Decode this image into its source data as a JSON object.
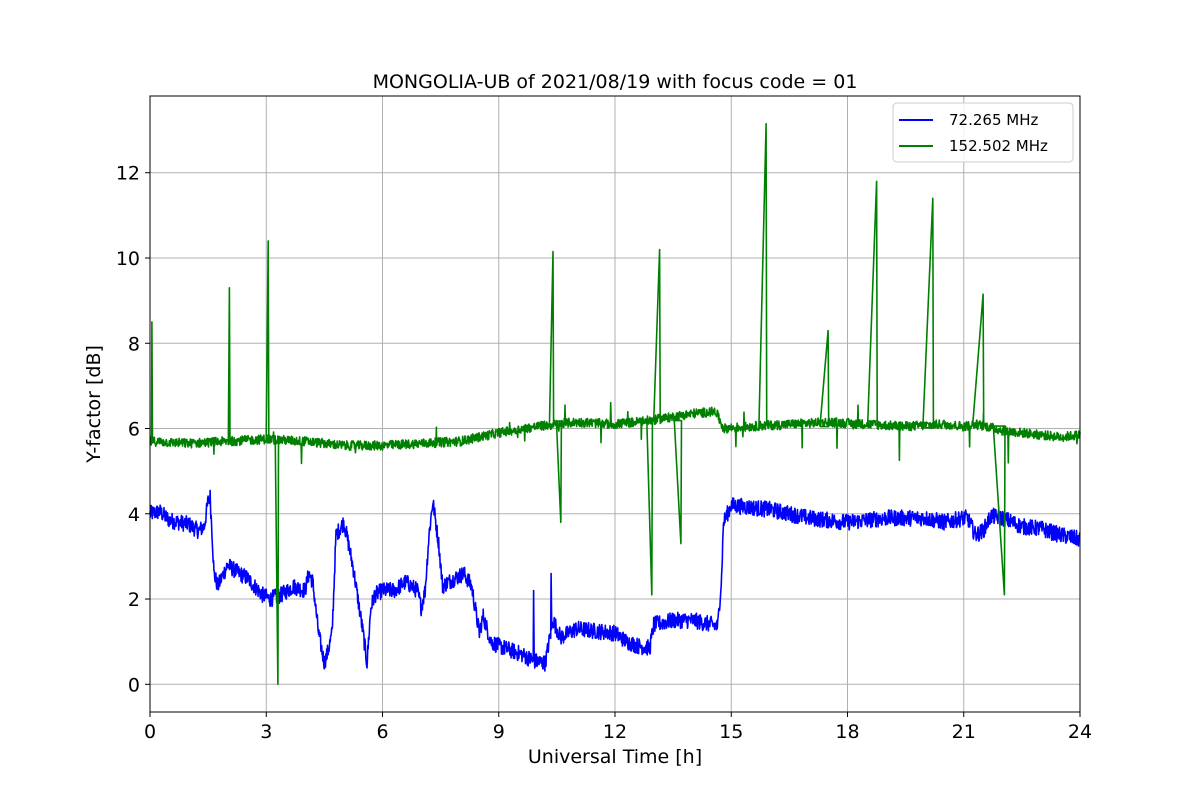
{
  "chart_data": {
    "type": "line",
    "title": "MONGOLIA-UB of 2021/08/19 with focus code = 01",
    "xlabel": "Universal Time [h]",
    "ylabel": "Y-factor [dB]",
    "xlim": [
      0,
      24
    ],
    "ylim": [
      -0.65,
      13.8
    ],
    "xticks": [
      0,
      3,
      6,
      9,
      12,
      15,
      18,
      21,
      24
    ],
    "xtick_labels": [
      "0",
      "3",
      "6",
      "9",
      "12",
      "15",
      "18",
      "21",
      "24"
    ],
    "yticks": [
      0,
      2,
      4,
      6,
      8,
      10,
      12
    ],
    "ytick_labels": [
      "0",
      "2",
      "4",
      "6",
      "8",
      "10",
      "12"
    ],
    "grid": true,
    "legend_position": "top-right",
    "series": [
      {
        "name": " 72.265 MHz",
        "color": "#0000ff",
        "x": [
          0.0,
          0.25,
          0.5,
          0.75,
          1.0,
          1.25,
          1.4,
          1.5,
          1.55,
          1.6,
          1.65,
          1.75,
          2.0,
          2.3,
          2.5,
          2.7,
          2.9,
          3.1,
          3.4,
          3.7,
          4.0,
          4.1,
          4.2,
          4.35,
          4.5,
          4.6,
          4.7,
          4.8,
          5.0,
          5.1,
          5.25,
          5.4,
          5.5,
          5.6,
          5.7,
          5.8,
          6.0,
          6.3,
          6.6,
          6.9,
          7.0,
          7.1,
          7.2,
          7.3,
          7.45,
          7.55,
          7.7,
          7.9,
          8.1,
          8.3,
          8.5,
          8.6,
          8.8,
          9.0,
          9.3,
          9.6,
          9.9,
          10.2,
          10.4,
          10.6,
          11.0,
          11.5,
          12.0,
          12.3,
          12.6,
          12.9,
          13.0,
          13.5,
          14.0,
          14.5,
          14.65,
          14.75,
          14.8,
          15.0,
          16.0,
          17.0,
          18.0,
          19.0,
          20.0,
          20.5,
          21.0,
          21.1,
          21.3,
          21.5,
          21.7,
          22.0,
          22.5,
          23.0,
          23.5,
          24.0
        ],
        "y": [
          4.0,
          4.05,
          3.85,
          3.8,
          3.75,
          3.6,
          3.7,
          4.3,
          4.4,
          3.6,
          2.6,
          2.3,
          2.8,
          2.6,
          2.5,
          2.3,
          2.1,
          2.0,
          2.1,
          2.3,
          2.2,
          2.6,
          2.4,
          1.2,
          0.5,
          0.8,
          1.2,
          3.5,
          3.8,
          3.4,
          2.7,
          1.8,
          1.2,
          0.5,
          1.8,
          2.1,
          2.2,
          2.2,
          2.4,
          2.2,
          1.8,
          2.2,
          3.5,
          4.3,
          3.3,
          2.3,
          2.4,
          2.5,
          2.6,
          2.3,
          1.2,
          1.6,
          1.0,
          0.9,
          0.8,
          0.7,
          0.55,
          0.5,
          1.5,
          1.1,
          1.3,
          1.25,
          1.2,
          1.0,
          0.9,
          0.85,
          1.4,
          1.5,
          1.5,
          1.4,
          1.35,
          2.5,
          3.8,
          4.2,
          4.1,
          3.9,
          3.8,
          3.9,
          3.9,
          3.8,
          3.9,
          3.9,
          3.5,
          3.6,
          3.95,
          3.9,
          3.7,
          3.65,
          3.5,
          3.4
        ]
      },
      {
        "name": "152.502 MHz",
        "color": "#008000",
        "x": [
          0.0,
          1.0,
          2.0,
          3.0,
          4.0,
          5.0,
          6.0,
          7.0,
          8.0,
          9.0,
          10.0,
          11.0,
          12.0,
          13.0,
          14.0,
          14.6,
          14.8,
          15.5,
          16.5,
          17.5,
          18.5,
          19.5,
          20.5,
          21.0,
          21.3,
          21.6,
          22.0,
          22.5,
          23.0,
          23.5,
          24.0
        ],
        "y": [
          5.7,
          5.65,
          5.7,
          5.75,
          5.7,
          5.6,
          5.6,
          5.65,
          5.7,
          5.9,
          6.05,
          6.15,
          6.1,
          6.2,
          6.35,
          6.4,
          6.0,
          6.05,
          6.1,
          6.15,
          6.1,
          6.05,
          6.1,
          6.05,
          6.1,
          6.05,
          5.95,
          5.9,
          5.85,
          5.8,
          5.85
        ]
      }
    ],
    "spikes": [
      {
        "series": 1,
        "x": 0.05,
        "y": 8.5
      },
      {
        "series": 1,
        "x": 2.05,
        "y": 9.3
      },
      {
        "series": 1,
        "x": 3.05,
        "y": 10.4
      },
      {
        "series": 1,
        "x": 3.3,
        "y": 0.0
      },
      {
        "series": 1,
        "x": 10.4,
        "y": 10.15
      },
      {
        "series": 1,
        "x": 10.6,
        "y": 3.8
      },
      {
        "series": 1,
        "x": 12.95,
        "y": 2.1
      },
      {
        "series": 1,
        "x": 13.15,
        "y": 10.2
      },
      {
        "series": 1,
        "x": 13.7,
        "y": 3.3
      },
      {
        "series": 1,
        "x": 15.9,
        "y": 13.15
      },
      {
        "series": 1,
        "x": 17.5,
        "y": 8.3
      },
      {
        "series": 1,
        "x": 18.75,
        "y": 11.8
      },
      {
        "series": 1,
        "x": 20.2,
        "y": 11.4
      },
      {
        "series": 1,
        "x": 21.5,
        "y": 9.15
      },
      {
        "series": 1,
        "x": 22.05,
        "y": 2.1
      },
      {
        "series": 0,
        "x": 10.35,
        "y": 2.6
      },
      {
        "series": 0,
        "x": 9.9,
        "y": 2.2
      }
    ]
  }
}
